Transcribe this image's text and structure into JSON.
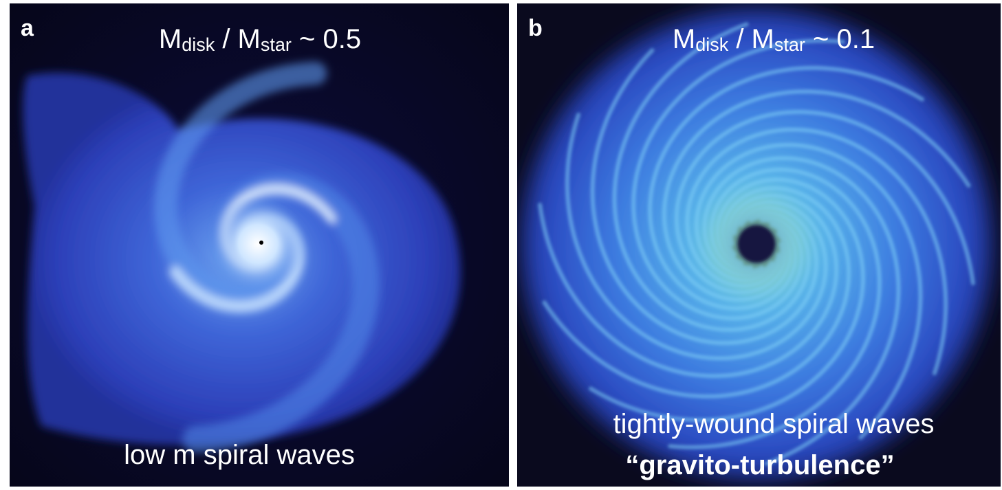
{
  "panels": [
    {
      "label": "a",
      "title": [
        "M",
        "disk",
        " / M",
        "star",
        " ~ 0.5"
      ],
      "caption": [
        "low m spiral waves"
      ]
    },
    {
      "label": "b",
      "title": [
        "M",
        "disk",
        " / M",
        "star",
        " ~ 0.1"
      ],
      "caption": [
        "tightly-wound spiral waves",
        "“gravito-turbulence”"
      ]
    }
  ]
}
